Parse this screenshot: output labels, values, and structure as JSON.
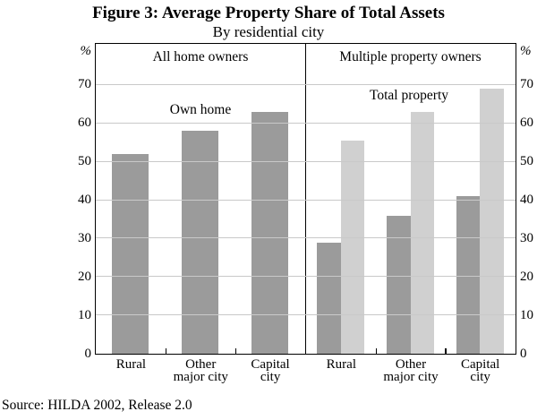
{
  "figure": {
    "title": "Figure 3: Average Property Share of Total Assets",
    "subtitle": "By residential city",
    "source": "Source: HILDA 2002, Release 2.0"
  },
  "axis": {
    "unit": "%",
    "ticks": [
      0,
      10,
      20,
      30,
      40,
      50,
      60,
      70
    ]
  },
  "colors": {
    "bar_dark": "#9b9b9b",
    "bar_light": "#d0d0d0",
    "gridline": "#c9c9c9",
    "frame": "#000000"
  },
  "chart_data": {
    "type": "bar",
    "title": "Figure 3: Average Property Share of Total Assets",
    "subtitle": "By residential city",
    "ylabel": "%",
    "ylim": [
      0,
      81
    ],
    "grid": true,
    "panels": [
      {
        "title": "All home owners",
        "annotation": "Own home",
        "categories": [
          "Rural",
          "Other major city",
          "Capital city"
        ],
        "category_lines": [
          [
            "Rural"
          ],
          [
            "Other",
            "major city"
          ],
          [
            "Capital",
            "city"
          ]
        ],
        "series": [
          {
            "name": "Own home",
            "color": "#9b9b9b",
            "values": [
              52,
              58,
              63
            ]
          }
        ]
      },
      {
        "title": "Multiple property owners",
        "annotation": "Total property",
        "categories": [
          "Rural",
          "Other major city",
          "Capital city"
        ],
        "category_lines": [
          [
            "Rural"
          ],
          [
            "Other",
            "major city"
          ],
          [
            "Capital",
            "city"
          ]
        ],
        "series": [
          {
            "name": "Own home",
            "color": "#9b9b9b",
            "values": [
              29,
              36,
              41
            ]
          },
          {
            "name": "Total property",
            "color": "#d0d0d0",
            "values": [
              55.5,
              63,
              69
            ]
          }
        ]
      }
    ]
  }
}
